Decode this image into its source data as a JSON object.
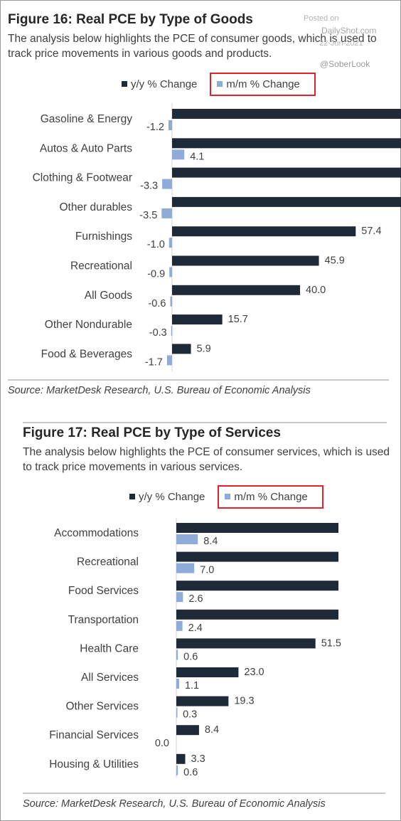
{
  "watermark": {
    "posted": "Posted on",
    "site": "DailyShot.com",
    "date": "22-Jun-2021",
    "handle": "@SoberLook"
  },
  "colors": {
    "yy": "#1f2a38",
    "mm": "#8eabd9",
    "highlight": "#e3212c"
  },
  "fig16": {
    "title": "Figure 16: Real PCE by Type of Goods",
    "desc": "The analysis below highlights the PCE of consumer goods, which is used to track price movements in various goods and products.",
    "source": "Source: MarketDesk Research, U.S. Bureau of Economic Analysis",
    "legend": {
      "yy": "y/y % Change",
      "mm": "m/m % Change"
    }
  },
  "fig17": {
    "title": "Figure 17: Real PCE by Type of Services",
    "desc": "The analysis below highlights the PCE of consumer services, which is used to track price movements in various services.",
    "source": "Source: MarketDesk Research, U.S. Bureau of Economic Analysis",
    "legend": {
      "yy": "y/y % Change",
      "mm": "m/m % Change"
    }
  },
  "chart_data": [
    {
      "type": "bar",
      "orientation": "horizontal",
      "title": "Figure 16: Real PCE by Type of Goods",
      "categories": [
        "Gasoline & Energy",
        "Autos & Auto Parts",
        "Clothing & Footwear",
        "Other durables",
        "Furnishings",
        "Recreational",
        "All Goods",
        "Other Nondurable",
        "Food & Beverages"
      ],
      "series": [
        {
          "name": "y/y % Change",
          "values": [
            72,
            72,
            72,
            72,
            57.4,
            45.9,
            40.0,
            15.7,
            5.9
          ],
          "labels": [
            "",
            "",
            "",
            "",
            "57.4",
            "45.9",
            "40.0",
            "15.7",
            "5.9"
          ]
        },
        {
          "name": "m/m % Change",
          "values": [
            -1.2,
            4.1,
            -3.3,
            -3.5,
            -1.0,
            -0.9,
            -0.6,
            -0.3,
            -1.7
          ],
          "labels": [
            "-1.2",
            "4.1",
            "-3.3",
            "-3.5",
            "-1.0",
            "-0.9",
            "-0.6",
            "-0.3",
            "-1.7"
          ]
        }
      ],
      "legend": "top"
    },
    {
      "type": "bar",
      "orientation": "horizontal",
      "title": "Figure 17: Real PCE by Type of Services",
      "categories": [
        "Accommodations",
        "Recreational",
        "Food Services",
        "Transportation",
        "Health Care",
        "All Services",
        "Other Services",
        "Financial Services",
        "Housing & Utilities"
      ],
      "series": [
        {
          "name": "y/y % Change",
          "values": [
            60,
            60,
            60,
            60,
            51.5,
            23.0,
            19.3,
            8.4,
            3.3
          ],
          "labels": [
            "",
            "",
            "",
            "",
            "51.5",
            "23.0",
            "19.3",
            "8.4",
            "3.3"
          ]
        },
        {
          "name": "m/m % Change",
          "values": [
            8.4,
            7.0,
            2.6,
            2.4,
            0.6,
            1.1,
            0.3,
            0.0,
            0.6
          ],
          "labels": [
            "8.4",
            "7.0",
            "2.6",
            "2.4",
            "0.6",
            "1.1",
            "0.3",
            "0.0",
            "0.6"
          ]
        }
      ],
      "legend": "top"
    }
  ]
}
